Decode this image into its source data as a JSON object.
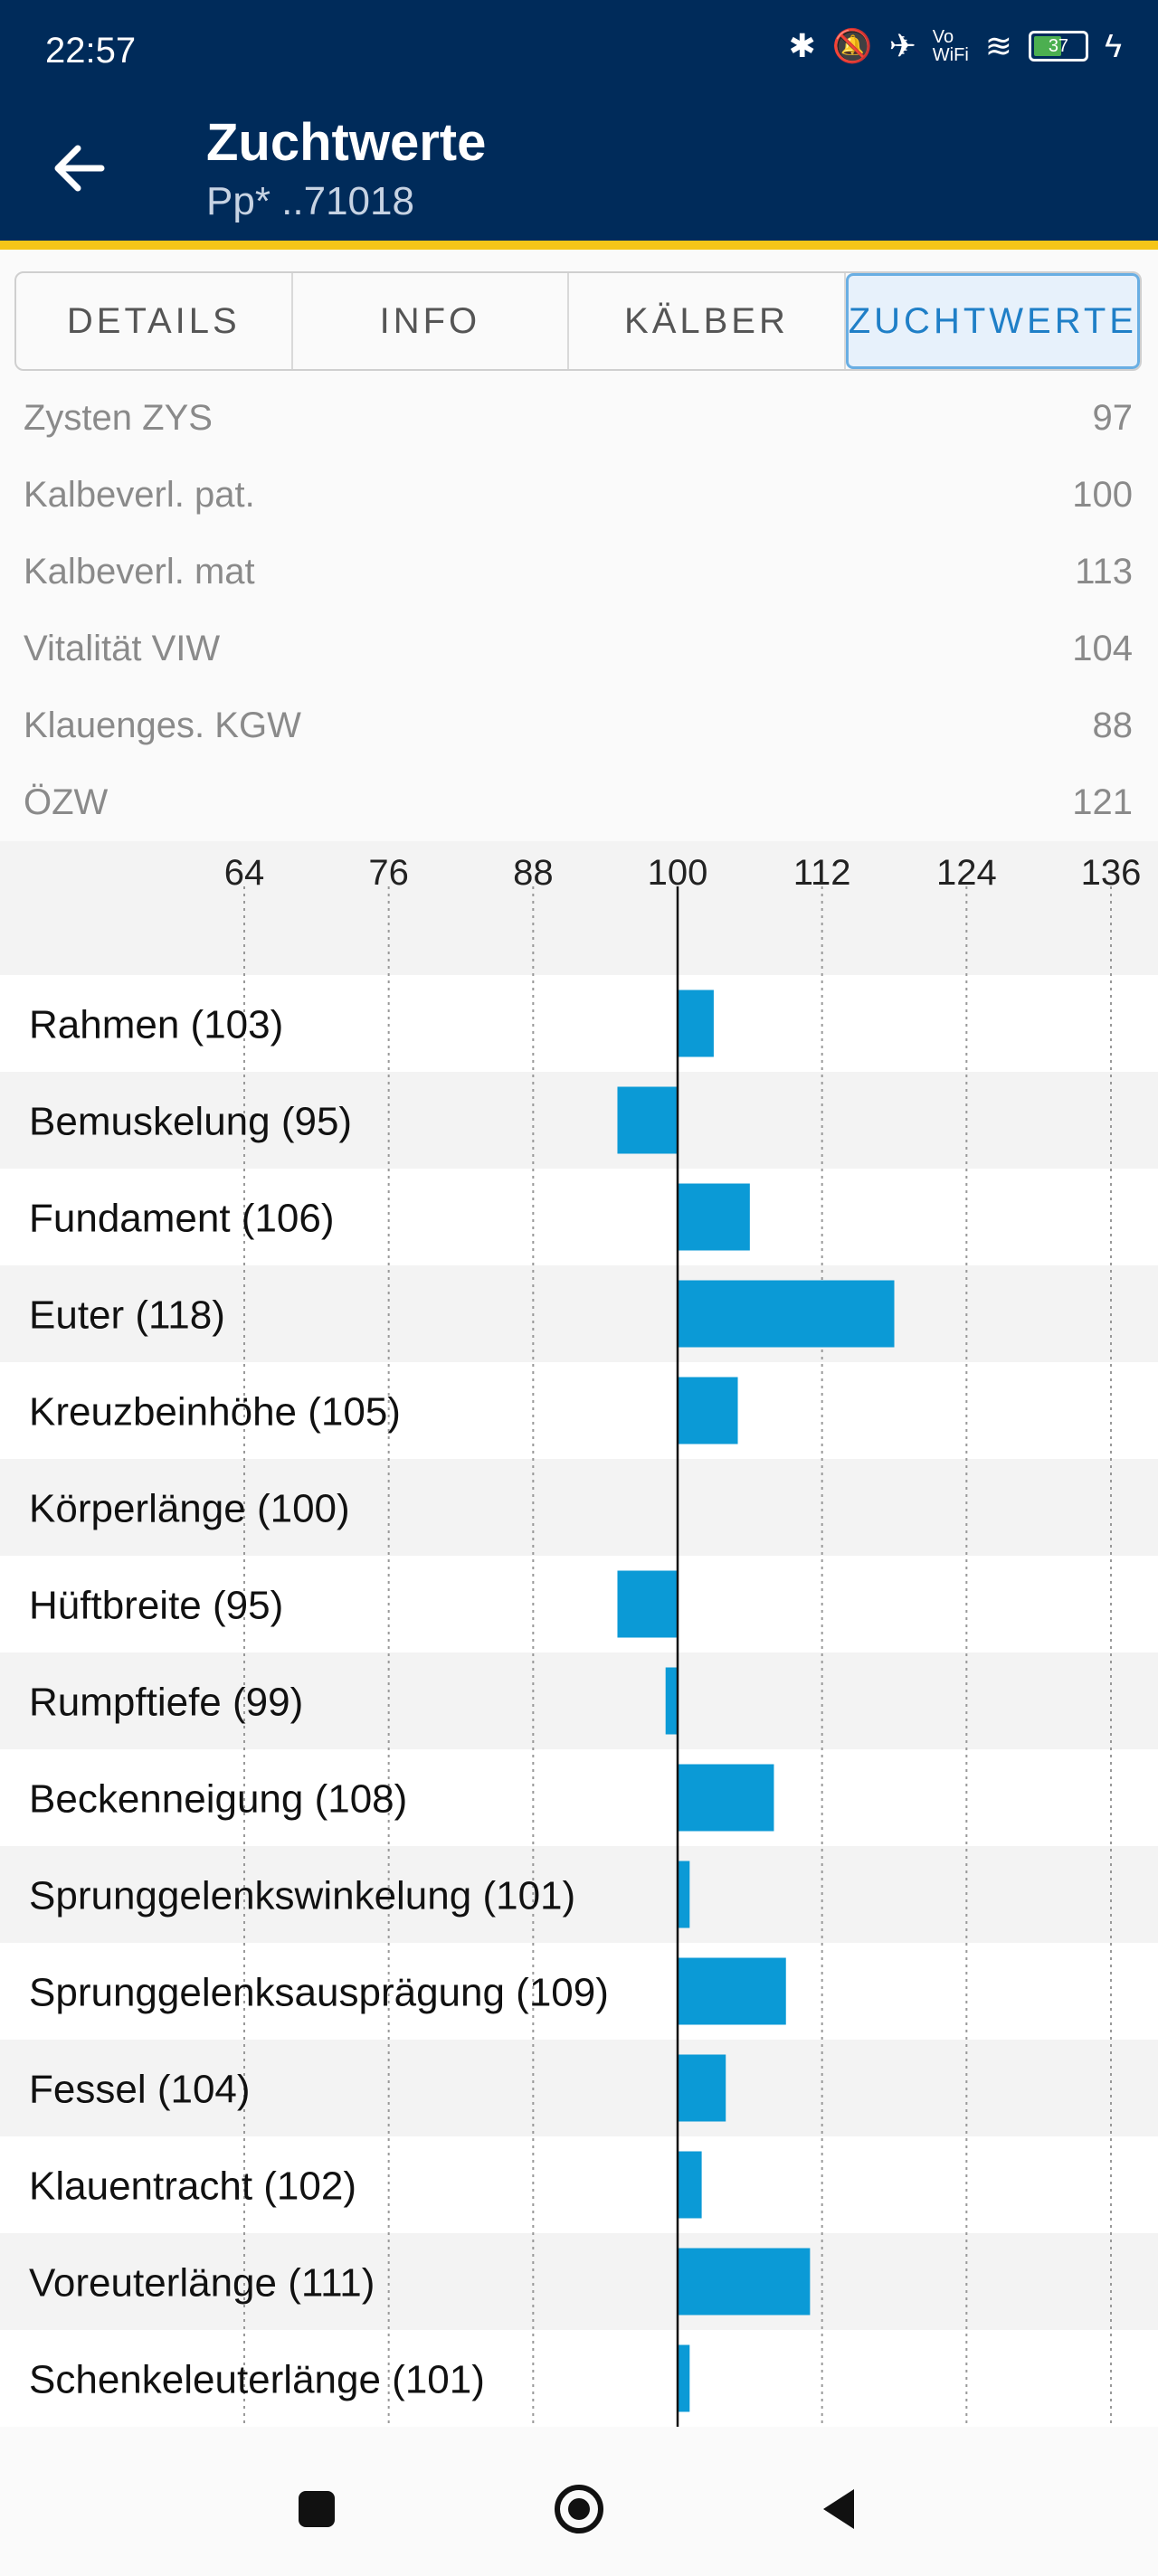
{
  "status": {
    "time": "22:57",
    "battery": "37"
  },
  "header": {
    "title": "Zuchtwerte",
    "subtitle": "Pp* ..71018"
  },
  "tabs": [
    {
      "label": "DETAILS",
      "active": false
    },
    {
      "label": "INFO",
      "active": false
    },
    {
      "label": "KÄLBER",
      "active": false
    },
    {
      "label": "ZUCHTWERTE",
      "active": true
    }
  ],
  "info_rows": [
    {
      "label": "Zysten ZYS",
      "value": "97"
    },
    {
      "label": "Kalbeverl. pat.",
      "value": "100"
    },
    {
      "label": "Kalbeverl. mat",
      "value": "113"
    },
    {
      "label": "Vitalität VIW",
      "value": "104"
    },
    {
      "label": "Klauenges. KGW",
      "value": "88"
    },
    {
      "label": "ÖZW",
      "value": "121"
    }
  ],
  "colors": {
    "header_bg": "#002b5a",
    "accent": "#f5c518",
    "bar": "#0b9ad6",
    "tab_active": "#1f7fc7"
  },
  "chart_data": {
    "type": "bar",
    "orientation": "horizontal",
    "baseline": 100,
    "xlim": [
      64,
      136
    ],
    "xticks": [
      "64",
      "76",
      "88",
      "100",
      "112",
      "124",
      "136"
    ],
    "grid": true,
    "categories": [
      "Rahmen (103)",
      "Bemuskelung (95)",
      "Fundament (106)",
      "Euter (118)",
      "Kreuzbeinhöhe (105)",
      "Körperlänge (100)",
      "Hüftbreite (95)",
      "Rumpftiefe (99)",
      "Beckenneigung (108)",
      "Sprunggelenkswinkelung (101)",
      "Sprunggelenksausprägung (109)",
      "Fessel (104)",
      "Klauentracht (102)",
      "Voreuterlänge (111)",
      "Schenkeleuterlänge (101)"
    ],
    "values": [
      103,
      95,
      106,
      118,
      105,
      100,
      95,
      99,
      108,
      101,
      109,
      104,
      102,
      111,
      101
    ]
  },
  "nav": {
    "recent": "recent-apps",
    "home": "home",
    "back": "back"
  }
}
